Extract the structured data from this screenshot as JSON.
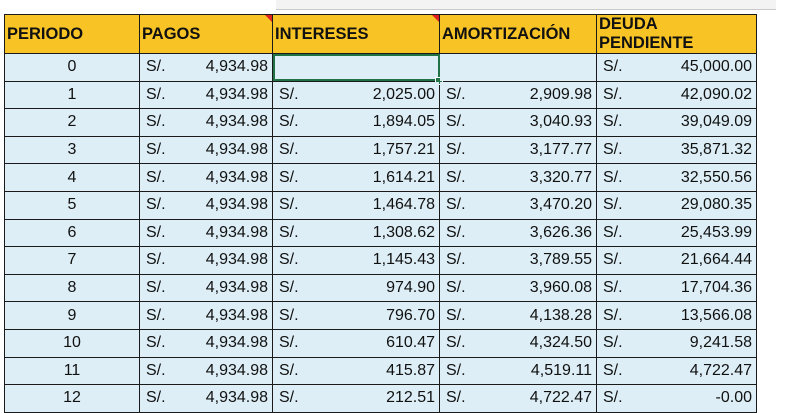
{
  "headers": [
    "PERIODO",
    "PAGOS",
    "INTERESES",
    "AMORTIZACIÓN",
    "DEUDA PENDIENTE"
  ],
  "currency": "S/.",
  "rows": [
    {
      "periodo": "0",
      "pagos": "4,934.98",
      "intereses": "",
      "amortizacion": "",
      "deuda": "45,000.00"
    },
    {
      "periodo": "1",
      "pagos": "4,934.98",
      "intereses": "2,025.00",
      "amortizacion": "2,909.98",
      "deuda": "42,090.02"
    },
    {
      "periodo": "2",
      "pagos": "4,934.98",
      "intereses": "1,894.05",
      "amortizacion": "3,040.93",
      "deuda": "39,049.09"
    },
    {
      "periodo": "3",
      "pagos": "4,934.98",
      "intereses": "1,757.21",
      "amortizacion": "3,177.77",
      "deuda": "35,871.32"
    },
    {
      "periodo": "4",
      "pagos": "4,934.98",
      "intereses": "1,614.21",
      "amortizacion": "3,320.77",
      "deuda": "32,550.56"
    },
    {
      "periodo": "5",
      "pagos": "4,934.98",
      "intereses": "1,464.78",
      "amortizacion": "3,470.20",
      "deuda": "29,080.35"
    },
    {
      "periodo": "6",
      "pagos": "4,934.98",
      "intereses": "1,308.62",
      "amortizacion": "3,626.36",
      "deuda": "25,453.99"
    },
    {
      "periodo": "7",
      "pagos": "4,934.98",
      "intereses": "1,145.43",
      "amortizacion": "3,789.55",
      "deuda": "21,664.44"
    },
    {
      "periodo": "8",
      "pagos": "4,934.98",
      "intereses": "974.90",
      "amortizacion": "3,960.08",
      "deuda": "17,704.36"
    },
    {
      "periodo": "9",
      "pagos": "4,934.98",
      "intereses": "796.70",
      "amortizacion": "4,138.28",
      "deuda": "13,566.08"
    },
    {
      "periodo": "10",
      "pagos": "4,934.98",
      "intereses": "610.47",
      "amortizacion": "4,324.50",
      "deuda": "9,241.58"
    },
    {
      "periodo": "11",
      "pagos": "4,934.98",
      "intereses": "415.87",
      "amortizacion": "4,519.11",
      "deuda": "4,722.47"
    },
    {
      "periodo": "12",
      "pagos": "4,934.98",
      "intereses": "212.51",
      "amortizacion": "4,722.47",
      "deuda": "-0.00"
    }
  ],
  "colors": {
    "header_bg": "#f7c325",
    "cell_bg": "#ddeef6",
    "selection": "#217346",
    "comment_flag": "#dd2222"
  }
}
